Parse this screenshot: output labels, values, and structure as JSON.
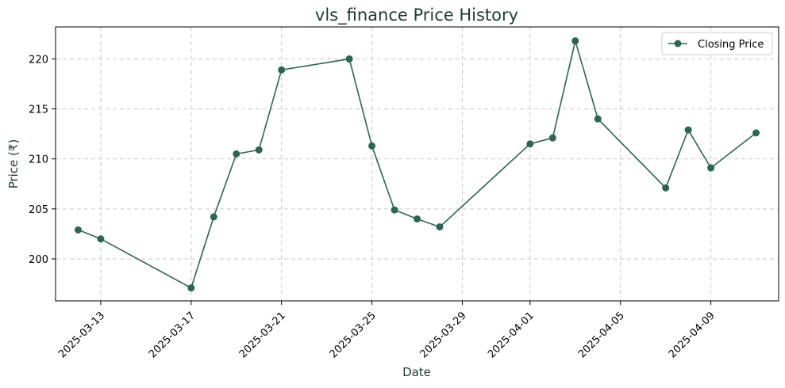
{
  "chart_data": {
    "type": "line",
    "title": "vls_finance Price History",
    "xlabel": "Date",
    "ylabel": "Price (₹)",
    "x_ticks": [
      "2025-03-13",
      "2025-03-17",
      "2025-03-21",
      "2025-03-25",
      "2025-03-29",
      "2025-04-01",
      "2025-04-05",
      "2025-04-09"
    ],
    "y_ticks": [
      200,
      205,
      210,
      215,
      220
    ],
    "xlim": [
      "2025-03-11",
      "2025-04-12"
    ],
    "ylim": [
      195.8,
      223.2
    ],
    "grid": true,
    "legend_position": "top-right",
    "series": [
      {
        "name": "Closing Price",
        "color": "#2b6650",
        "marker": "circle",
        "points": [
          {
            "x": "2025-03-12",
            "y": 202.9
          },
          {
            "x": "2025-03-13",
            "y": 202.0
          },
          {
            "x": "2025-03-17",
            "y": 197.1
          },
          {
            "x": "2025-03-18",
            "y": 204.2
          },
          {
            "x": "2025-03-19",
            "y": 210.5
          },
          {
            "x": "2025-03-20",
            "y": 210.9
          },
          {
            "x": "2025-03-21",
            "y": 218.9
          },
          {
            "x": "2025-03-24",
            "y": 220.0
          },
          {
            "x": "2025-03-25",
            "y": 211.3
          },
          {
            "x": "2025-03-26",
            "y": 204.9
          },
          {
            "x": "2025-03-27",
            "y": 204.0
          },
          {
            "x": "2025-03-28",
            "y": 203.2
          },
          {
            "x": "2025-04-01",
            "y": 211.5
          },
          {
            "x": "2025-04-02",
            "y": 212.1
          },
          {
            "x": "2025-04-03",
            "y": 221.8
          },
          {
            "x": "2025-04-04",
            "y": 214.0
          },
          {
            "x": "2025-04-07",
            "y": 207.1
          },
          {
            "x": "2025-04-08",
            "y": 212.9
          },
          {
            "x": "2025-04-09",
            "y": 209.1
          },
          {
            "x": "2025-04-11",
            "y": 212.6
          }
        ]
      }
    ]
  }
}
